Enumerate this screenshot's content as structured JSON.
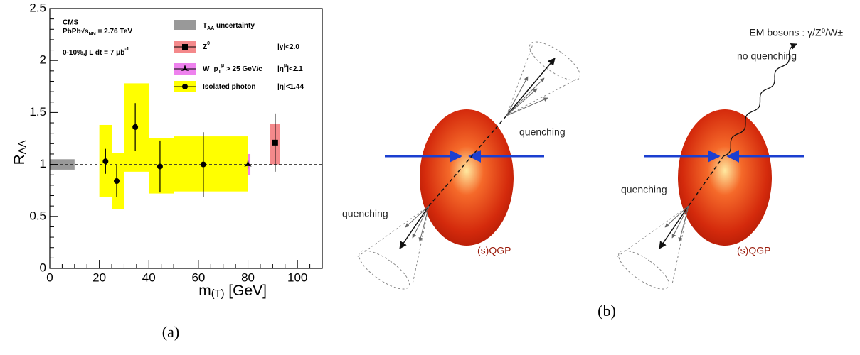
{
  "chart_data": {
    "type": "scatter",
    "xlim": [
      0,
      110
    ],
    "ylim": [
      0,
      2.5
    ],
    "xticks": [
      0,
      20,
      40,
      60,
      80,
      100
    ],
    "yticks": [
      0,
      0.5,
      1,
      1.5,
      2,
      2.5
    ],
    "xlabel": {
      "main": "m",
      "sub": "(T)",
      "rest": " [GeV]"
    },
    "ylabel": {
      "main": "R",
      "sub": "AA"
    },
    "reference_line": 1,
    "annotations": {
      "experiment": "CMS",
      "system": "PbPb",
      "energy_sqrt": "√s",
      "energy_sub": "NN",
      "energy_rest": " = 2.76 TeV",
      "centrality": "0-10%,",
      "lumi_integral": "∫",
      "lumi_text": " L dt = 7 μb",
      "lumi_sup": "-1"
    },
    "taa": {
      "name": "T",
      "sub": "AA",
      "rest": " uncertainty",
      "color": "#999999",
      "x": [
        0,
        10
      ],
      "y": [
        0.95,
        1.05
      ]
    },
    "series": [
      {
        "name": "Z",
        "name_sup": "0",
        "range": "|y|<2.0",
        "marker": "square",
        "color": "#f4898b",
        "x": [
          91
        ],
        "values": [
          1.21
        ],
        "errors": [
          0.28
        ],
        "box_x": [
          [
            89,
            93
          ]
        ],
        "box_y": [
          [
            1.0,
            1.39
          ]
        ]
      },
      {
        "name": "W",
        "cut_p": "p",
        "cut_sub": "T",
        "cut_sup": "μ",
        "cut_rest": " > 25 GeV/c",
        "range_a": "|η",
        "range_sup": "μ",
        "range_b": "|<2.1",
        "marker": "star",
        "color": "#ee82ee",
        "x": [
          80
        ],
        "values": [
          1.0
        ],
        "errors": [
          0.04
        ],
        "box_x": [
          [
            78,
            81
          ]
        ],
        "box_y": [
          [
            0.9,
            1.1
          ]
        ]
      },
      {
        "name": "Isolated photon",
        "range": "|η|<1.44",
        "marker": "circle",
        "color": "#ffff00",
        "x": [
          22.5,
          27,
          34.5,
          44.5,
          62
        ],
        "values": [
          1.03,
          0.84,
          1.36,
          0.98,
          1.0
        ],
        "errors": [
          0.12,
          0.15,
          0.23,
          0.25,
          0.31
        ],
        "box_x": [
          [
            20,
            25
          ],
          [
            25,
            30
          ],
          [
            30,
            40
          ],
          [
            40,
            50
          ],
          [
            50,
            80
          ]
        ],
        "box_y": [
          [
            0.69,
            1.38
          ],
          [
            0.57,
            1.11
          ],
          [
            0.93,
            1.78
          ],
          [
            0.72,
            1.25
          ],
          [
            0.74,
            1.27
          ]
        ]
      }
    ]
  },
  "captions": {
    "a": "(a)",
    "b": "(b)"
  },
  "diagram": {
    "em_label": "EM bosons : γ/Z⁰/W±",
    "no_quenching": "no quenching",
    "quenching_labels": [
      "quenching",
      "quenching",
      "quenching"
    ],
    "medium_labels": [
      "(s)QGP",
      "(s)QGP"
    ]
  }
}
